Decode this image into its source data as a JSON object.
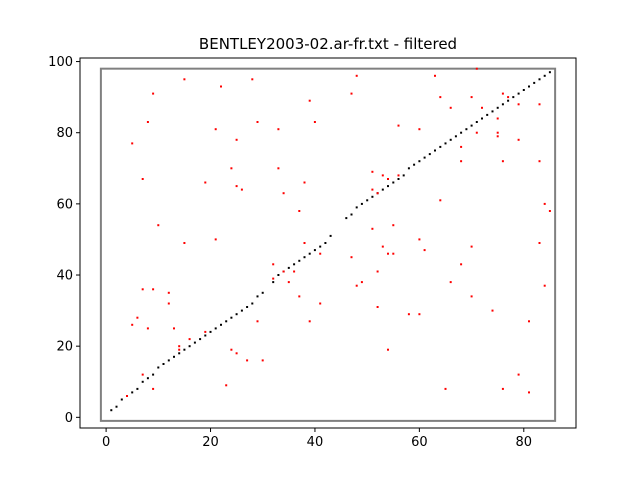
{
  "chart_data": {
    "type": "scatter",
    "title": "BENTLEY2003-02.ar-fr.txt - filtered",
    "xlabel": "",
    "ylabel": "",
    "xlim": [
      -5,
      90
    ],
    "ylim": [
      -3,
      101
    ],
    "xticks": [
      0,
      20,
      40,
      60,
      80
    ],
    "yticks": [
      0,
      20,
      40,
      60,
      80,
      100
    ],
    "grid": false,
    "box": {
      "x0": -1,
      "y0": -1,
      "x1": 86,
      "y1": 98,
      "color": "#808080"
    },
    "series": [
      {
        "color": "#000000",
        "points": [
          [
            1,
            2
          ],
          [
            2,
            3
          ],
          [
            3,
            5
          ],
          [
            4,
            6
          ],
          [
            5,
            7
          ],
          [
            6,
            8
          ],
          [
            7,
            10
          ],
          [
            8,
            11
          ],
          [
            9,
            12
          ],
          [
            10,
            14
          ],
          [
            11,
            15
          ],
          [
            12,
            16
          ],
          [
            13,
            17
          ],
          [
            14,
            18
          ],
          [
            15,
            19
          ],
          [
            16,
            20
          ],
          [
            17,
            21
          ],
          [
            18,
            22
          ],
          [
            19,
            23
          ],
          [
            20,
            24
          ],
          [
            21,
            25
          ],
          [
            22,
            26
          ],
          [
            23,
            27
          ],
          [
            24,
            28
          ],
          [
            25,
            29
          ],
          [
            26,
            30
          ],
          [
            27,
            31
          ],
          [
            28,
            32
          ],
          [
            29,
            34
          ],
          [
            30,
            35
          ],
          [
            32,
            38
          ],
          [
            33,
            40
          ],
          [
            34,
            41
          ],
          [
            35,
            42
          ],
          [
            36,
            43
          ],
          [
            37,
            44
          ],
          [
            38,
            45
          ],
          [
            39,
            46
          ],
          [
            40,
            47
          ],
          [
            41,
            48
          ],
          [
            42,
            49
          ],
          [
            43,
            51
          ],
          [
            46,
            56
          ],
          [
            47,
            57
          ],
          [
            48,
            59
          ],
          [
            49,
            60
          ],
          [
            50,
            61
          ],
          [
            51,
            62
          ],
          [
            52,
            63
          ],
          [
            53,
            64
          ],
          [
            54,
            65
          ],
          [
            55,
            66
          ],
          [
            56,
            67
          ],
          [
            57,
            68
          ],
          [
            58,
            70
          ],
          [
            59,
            71
          ],
          [
            60,
            72
          ],
          [
            61,
            73
          ],
          [
            62,
            74
          ],
          [
            63,
            75
          ],
          [
            64,
            76
          ],
          [
            65,
            77
          ],
          [
            66,
            78
          ],
          [
            67,
            79
          ],
          [
            68,
            80
          ],
          [
            69,
            81
          ],
          [
            70,
            82
          ],
          [
            71,
            83
          ],
          [
            72,
            84
          ],
          [
            73,
            85
          ],
          [
            74,
            86
          ],
          [
            75,
            87
          ],
          [
            76,
            88
          ],
          [
            77,
            89
          ],
          [
            78,
            90
          ],
          [
            79,
            91
          ],
          [
            80,
            92
          ],
          [
            81,
            93
          ],
          [
            82,
            94
          ],
          [
            83,
            95
          ],
          [
            84,
            96
          ],
          [
            85,
            97
          ]
        ]
      },
      {
        "color": "#ff0000",
        "points": [
          [
            4,
            6
          ],
          [
            5,
            26
          ],
          [
            5,
            77
          ],
          [
            6,
            28
          ],
          [
            7,
            12
          ],
          [
            7,
            36
          ],
          [
            7,
            67
          ],
          [
            8,
            25
          ],
          [
            8,
            83
          ],
          [
            9,
            8
          ],
          [
            9,
            36
          ],
          [
            9,
            91
          ],
          [
            10,
            54
          ],
          [
            12,
            32
          ],
          [
            12,
            35
          ],
          [
            13,
            25
          ],
          [
            14,
            19
          ],
          [
            14,
            20
          ],
          [
            15,
            49
          ],
          [
            15,
            95
          ],
          [
            16,
            22
          ],
          [
            19,
            24
          ],
          [
            19,
            66
          ],
          [
            21,
            50
          ],
          [
            21,
            81
          ],
          [
            22,
            93
          ],
          [
            23,
            9
          ],
          [
            24,
            19
          ],
          [
            24,
            70
          ],
          [
            25,
            18
          ],
          [
            25,
            65
          ],
          [
            25,
            78
          ],
          [
            26,
            64
          ],
          [
            27,
            16
          ],
          [
            28,
            95
          ],
          [
            29,
            27
          ],
          [
            29,
            83
          ],
          [
            30,
            16
          ],
          [
            32,
            39
          ],
          [
            32,
            43
          ],
          [
            33,
            70
          ],
          [
            33,
            81
          ],
          [
            34,
            41
          ],
          [
            34,
            63
          ],
          [
            35,
            38
          ],
          [
            36,
            41
          ],
          [
            37,
            34
          ],
          [
            37,
            58
          ],
          [
            38,
            49
          ],
          [
            38,
            66
          ],
          [
            39,
            27
          ],
          [
            39,
            89
          ],
          [
            40,
            83
          ],
          [
            41,
            32
          ],
          [
            41,
            46
          ],
          [
            47,
            45
          ],
          [
            47,
            91
          ],
          [
            48,
            37
          ],
          [
            48,
            96
          ],
          [
            49,
            38
          ],
          [
            51,
            53
          ],
          [
            51,
            64
          ],
          [
            51,
            69
          ],
          [
            52,
            31
          ],
          [
            52,
            41
          ],
          [
            52,
            63
          ],
          [
            53,
            48
          ],
          [
            53,
            68
          ],
          [
            54,
            19
          ],
          [
            54,
            46
          ],
          [
            54,
            67
          ],
          [
            55,
            46
          ],
          [
            55,
            54
          ],
          [
            56,
            68
          ],
          [
            56,
            82
          ],
          [
            58,
            29
          ],
          [
            60,
            29
          ],
          [
            60,
            50
          ],
          [
            60,
            81
          ],
          [
            61,
            47
          ],
          [
            63,
            96
          ],
          [
            64,
            61
          ],
          [
            64,
            90
          ],
          [
            65,
            8
          ],
          [
            66,
            38
          ],
          [
            66,
            87
          ],
          [
            68,
            43
          ],
          [
            68,
            72
          ],
          [
            68,
            76
          ],
          [
            70,
            34
          ],
          [
            70,
            48
          ],
          [
            70,
            90
          ],
          [
            71,
            80
          ],
          [
            71,
            98
          ],
          [
            72,
            87
          ],
          [
            74,
            30
          ],
          [
            75,
            79
          ],
          [
            75,
            80
          ],
          [
            75,
            84
          ],
          [
            76,
            8
          ],
          [
            76,
            72
          ],
          [
            76,
            91
          ],
          [
            77,
            90
          ],
          [
            79,
            12
          ],
          [
            79,
            78
          ],
          [
            79,
            88
          ],
          [
            81,
            7
          ],
          [
            81,
            27
          ],
          [
            83,
            49
          ],
          [
            83,
            72
          ],
          [
            83,
            88
          ],
          [
            84,
            37
          ],
          [
            84,
            60
          ],
          [
            85,
            58
          ]
        ]
      }
    ]
  }
}
